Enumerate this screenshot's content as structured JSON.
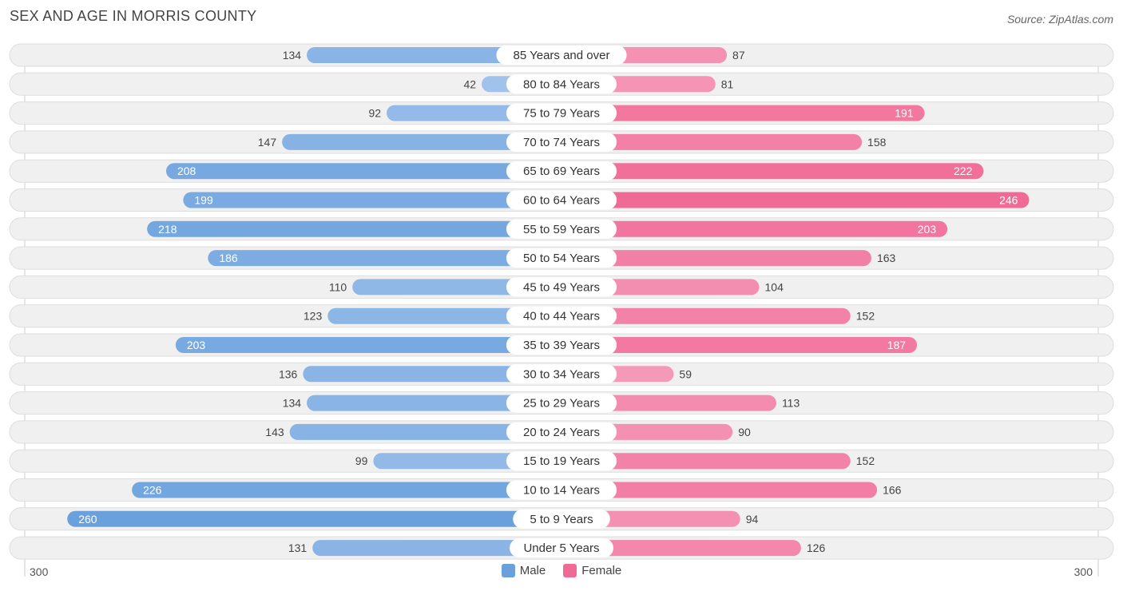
{
  "title": "SEX AND AGE IN MORRIS COUNTY",
  "source": "Source: ZipAtlas.com",
  "colors": {
    "male_dark": "#6aa1dd",
    "male_light": "#aac8ee",
    "female_dark": "#f06a96",
    "female_light": "#f7a8c4",
    "row_bg": "#f0f0f0",
    "row_border": "#dddddd"
  },
  "legend": {
    "male": "Male",
    "female": "Female"
  },
  "axis": {
    "left_label": "300",
    "right_label": "300"
  },
  "chart_data": {
    "type": "bar",
    "orientation": "horizontal-diverging",
    "xlim": [
      -300,
      300
    ],
    "categories": [
      "85 Years and over",
      "80 to 84 Years",
      "75 to 79 Years",
      "70 to 74 Years",
      "65 to 69 Years",
      "60 to 64 Years",
      "55 to 59 Years",
      "50 to 54 Years",
      "45 to 49 Years",
      "40 to 44 Years",
      "35 to 39 Years",
      "30 to 34 Years",
      "25 to 29 Years",
      "20 to 24 Years",
      "15 to 19 Years",
      "10 to 14 Years",
      "5 to 9 Years",
      "Under 5 Years"
    ],
    "series": [
      {
        "name": "Male",
        "values": [
          134,
          42,
          92,
          147,
          208,
          199,
          218,
          186,
          110,
          123,
          203,
          136,
          134,
          143,
          99,
          226,
          260,
          131
        ]
      },
      {
        "name": "Female",
        "values": [
          87,
          81,
          191,
          158,
          222,
          246,
          203,
          163,
          104,
          152,
          187,
          59,
          113,
          90,
          152,
          166,
          94,
          126
        ]
      }
    ]
  }
}
